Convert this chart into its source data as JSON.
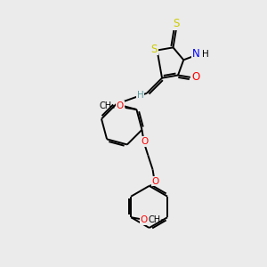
{
  "bg_color": "#ebebeb",
  "bond_color": "#000000",
  "sulfur_color": "#cccc00",
  "nitrogen_color": "#0000ff",
  "oxygen_color": "#ff0000",
  "carbon_color": "#000000",
  "hydrogen_color": "#5a9ea0",
  "line_width": 1.4,
  "figsize": [
    3.0,
    3.0
  ],
  "dpi": 100,
  "xlim": [
    0,
    10
  ],
  "ylim": [
    0,
    10
  ]
}
